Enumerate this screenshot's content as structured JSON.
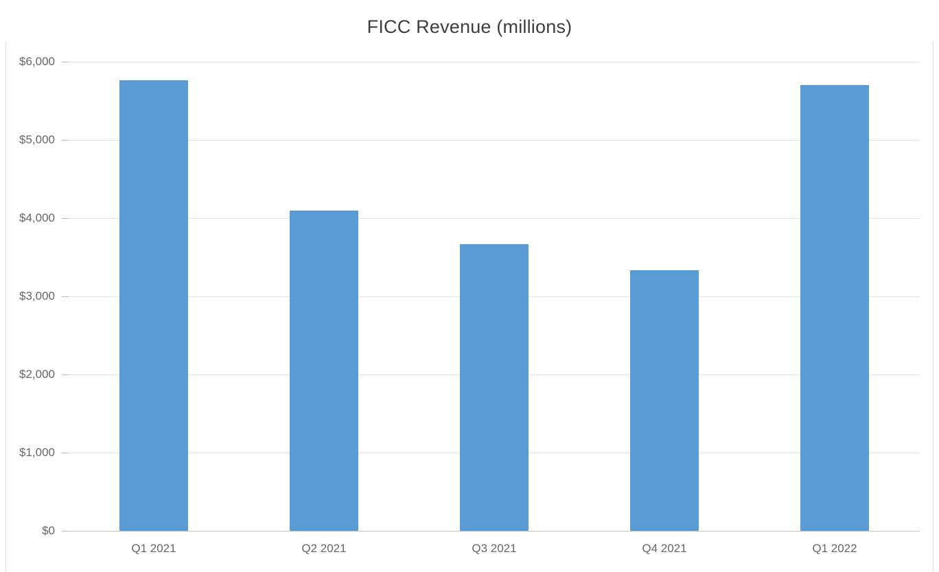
{
  "chart_data": {
    "type": "bar",
    "title": "FICC Revenue (millions)",
    "categories": [
      "Q1 2021",
      "Q2 2021",
      "Q3 2021",
      "Q4 2021",
      "Q1 2022"
    ],
    "values": [
      5760,
      4100,
      3670,
      3330,
      5700
    ],
    "xlabel": "",
    "ylabel": "",
    "ylim": [
      0,
      6000
    ],
    "yticks": [
      {
        "value": 0,
        "label": "$0"
      },
      {
        "value": 1000,
        "label": "$1,000"
      },
      {
        "value": 2000,
        "label": "$2,000"
      },
      {
        "value": 3000,
        "label": "$3,000"
      },
      {
        "value": 4000,
        "label": "$4,000"
      },
      {
        "value": 5000,
        "label": "$5,000"
      },
      {
        "value": 6000,
        "label": "$6,000"
      }
    ],
    "grid": true,
    "legend": "none",
    "bar_color": "#5B9BD5",
    "gridline_color": "#E4E4E4",
    "baseline_color": "#C6C6C6",
    "axis_text_color": "#666666",
    "title_color": "#3E3E3E"
  }
}
